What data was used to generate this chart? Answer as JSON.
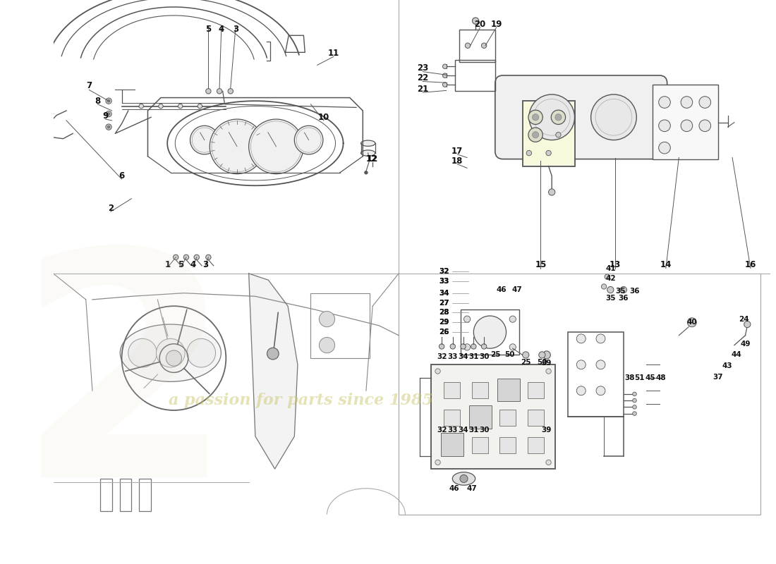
{
  "bg": "#ffffff",
  "panel_line_color": "#555555",
  "label_color": "#000000",
  "watermark_text": "a passion for parts since 1985",
  "watermark_color": "#c8c060",
  "divider_color": "#999999",
  "panels": {
    "tl": [
      0,
      380,
      530,
      800
    ],
    "tr": [
      530,
      380,
      1100,
      800
    ],
    "bl": [
      0,
      0,
      530,
      380
    ],
    "br": [
      530,
      0,
      1100,
      380
    ]
  },
  "tl_labels": [
    [
      "7",
      55,
      668
    ],
    [
      "8",
      68,
      645
    ],
    [
      "9",
      80,
      622
    ],
    [
      "5",
      238,
      755
    ],
    [
      "4",
      258,
      755
    ],
    [
      "3",
      280,
      755
    ],
    [
      "11",
      430,
      718
    ],
    [
      "10",
      415,
      620
    ],
    [
      "6",
      105,
      530
    ],
    [
      "2",
      88,
      480
    ],
    [
      "1",
      176,
      394
    ],
    [
      "5",
      196,
      394
    ],
    [
      "4",
      214,
      394
    ],
    [
      "3",
      233,
      394
    ]
  ],
  "tr_labels": [
    [
      "20",
      655,
      763
    ],
    [
      "19",
      680,
      763
    ],
    [
      "23",
      567,
      695
    ],
    [
      "22",
      567,
      680
    ],
    [
      "21",
      567,
      663
    ],
    [
      "17",
      620,
      568
    ],
    [
      "18",
      620,
      553
    ],
    [
      "12",
      488,
      556
    ],
    [
      "15",
      748,
      393
    ],
    [
      "13",
      862,
      393
    ],
    [
      "14",
      940,
      393
    ],
    [
      "16",
      1070,
      393
    ]
  ],
  "br_labels": [
    [
      "32",
      596,
      140
    ],
    [
      "33",
      613,
      140
    ],
    [
      "34",
      629,
      140
    ],
    [
      "31",
      645,
      140
    ],
    [
      "30",
      661,
      140
    ],
    [
      "39",
      757,
      140
    ],
    [
      "38",
      884,
      220
    ],
    [
      "51",
      900,
      220
    ],
    [
      "45",
      916,
      220
    ],
    [
      "48",
      932,
      220
    ],
    [
      "49",
      1062,
      272
    ],
    [
      "44",
      1048,
      255
    ],
    [
      "43",
      1034,
      238
    ],
    [
      "37",
      1020,
      221
    ],
    [
      "25",
      679,
      255
    ],
    [
      "50",
      700,
      255
    ],
    [
      "26",
      600,
      290
    ],
    [
      "29",
      600,
      305
    ],
    [
      "28",
      600,
      320
    ],
    [
      "27",
      600,
      335
    ],
    [
      "34",
      600,
      350
    ],
    [
      "33",
      600,
      368
    ],
    [
      "32",
      600,
      383
    ],
    [
      "46",
      688,
      355
    ],
    [
      "47",
      712,
      355
    ],
    [
      "35",
      870,
      353
    ],
    [
      "36",
      892,
      353
    ],
    [
      "40",
      980,
      305
    ],
    [
      "42",
      855,
      372
    ],
    [
      "41",
      855,
      388
    ],
    [
      "24",
      1060,
      310
    ]
  ]
}
